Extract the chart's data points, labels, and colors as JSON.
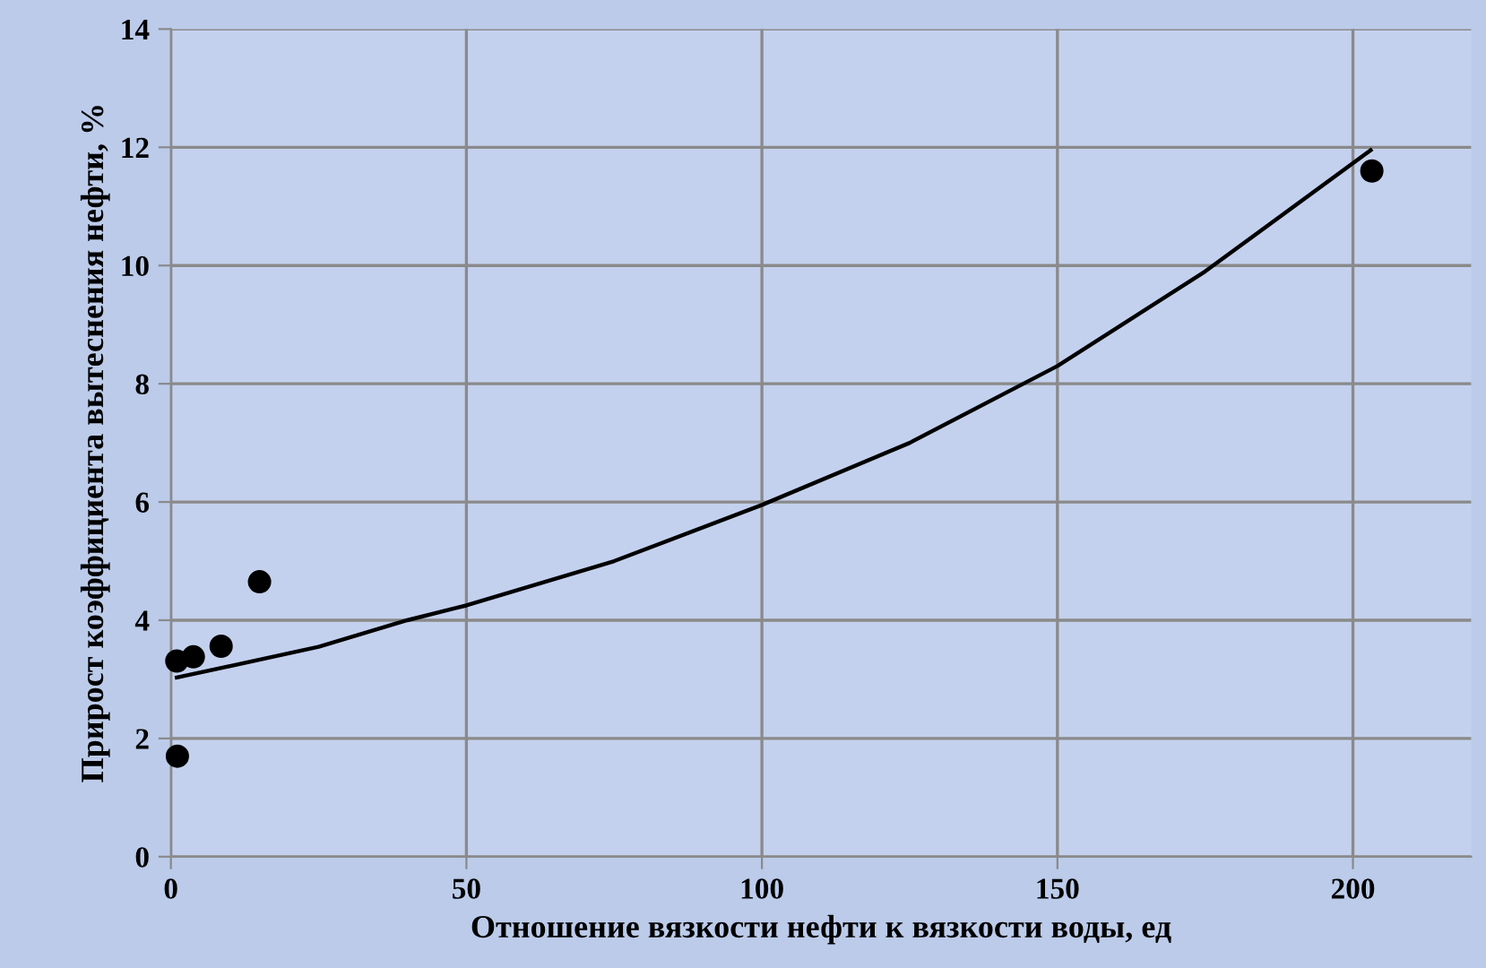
{
  "chart_data": {
    "type": "scatter",
    "xlabel": "Отношение вязкости нефти к вязкости воды, ед",
    "ylabel": "Прирост коэффициента вытеснения нефти, %",
    "series": [
      {
        "color": "#000000",
        "marker": "circle",
        "x": [
          1.0,
          3.8,
          8.5,
          15.0,
          1.1,
          203.2
        ],
        "values": [
          3.31,
          3.38,
          3.56,
          4.65,
          1.7,
          11.6
        ]
      },
      {
        "type": "line",
        "color": "#000000",
        "marker": "none",
        "line_style": "solid",
        "x": [
          1,
          25,
          40,
          50,
          75,
          100,
          125,
          150,
          175,
          203
        ],
        "values": [
          3.03,
          3.55,
          4.0,
          4.25,
          5.0,
          5.95,
          7.0,
          8.3,
          9.9,
          11.95
        ]
      }
    ],
    "xlim": [
      0,
      220
    ],
    "xticks": [
      0,
      50,
      100,
      150,
      200
    ],
    "ylim": [
      0,
      14
    ],
    "yticks": [
      0,
      2,
      4,
      6,
      8,
      10,
      12,
      14
    ],
    "grid": true
  }
}
